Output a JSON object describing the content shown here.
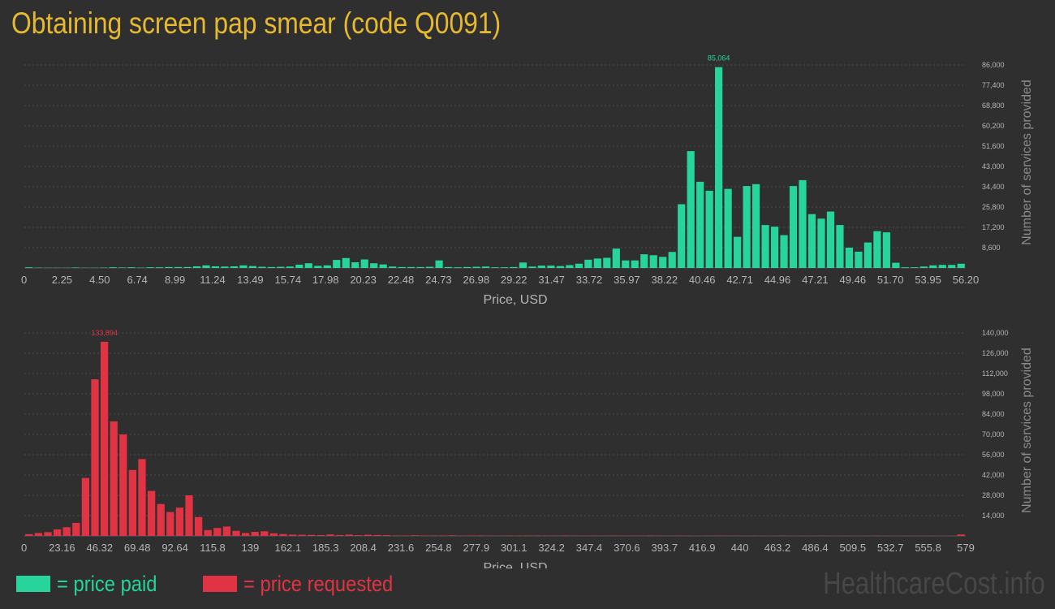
{
  "title": "Obtaining screen pap smear (code Q0091)",
  "legend": {
    "paid": {
      "label": "= price paid",
      "color": "#27d49c"
    },
    "requested": {
      "label": "= price requested",
      "color": "#e03445"
    }
  },
  "watermark": "HealthcareCost.info",
  "chart_data": [
    {
      "type": "bar",
      "xlabel": "Price, USD",
      "ylabel": "Number of services provided",
      "color": "#27d49c",
      "xlim": [
        0,
        56.2
      ],
      "ylim": [
        0,
        86000
      ],
      "x_ticks": [
        "0",
        "2.25",
        "4.50",
        "6.74",
        "8.99",
        "11.24",
        "13.49",
        "15.74",
        "17.98",
        "20.23",
        "22.48",
        "24.73",
        "26.98",
        "29.22",
        "31.47",
        "33.72",
        "35.97",
        "38.22",
        "40.46",
        "42.71",
        "44.96",
        "47.21",
        "49.46",
        "51.70",
        "53.95",
        "56.20"
      ],
      "y_ticks": [
        "8,600",
        "17,200",
        "25,800",
        "34,400",
        "43,000",
        "51,600",
        "60,200",
        "68,800",
        "77,400",
        "86,000"
      ],
      "peak_label": "85,064",
      "values": [
        300,
        150,
        100,
        100,
        100,
        200,
        100,
        100,
        150,
        300,
        200,
        300,
        150,
        300,
        300,
        400,
        400,
        400,
        700,
        1100,
        700,
        600,
        700,
        1100,
        800,
        500,
        400,
        500,
        600,
        1400,
        2000,
        900,
        1100,
        3400,
        4200,
        2400,
        3600,
        2000,
        1500,
        600,
        400,
        400,
        400,
        500,
        3200,
        400,
        300,
        400,
        500,
        600,
        300,
        300,
        400,
        2300,
        600,
        1000,
        1000,
        800,
        1200,
        1800,
        3500,
        4000,
        4300,
        8200,
        3200,
        3200,
        5800,
        5400,
        4700,
        6800,
        27000,
        49500,
        36500,
        32700,
        85064,
        33500,
        13200,
        34700,
        35500,
        18200,
        17500,
        13900,
        34700,
        37200,
        22800,
        20900,
        23900,
        18200,
        8600,
        6900,
        10800,
        15600,
        15100,
        2200,
        300,
        300,
        600,
        1100,
        1300,
        1300,
        1800
      ]
    },
    {
      "type": "bar",
      "xlabel": "Price, USD",
      "ylabel": "Number of services provided",
      "color": "#e03445",
      "xlim": [
        0,
        579
      ],
      "ylim": [
        0,
        140000
      ],
      "x_ticks": [
        "0",
        "23.16",
        "46.32",
        "69.48",
        "92.64",
        "115.8",
        "139",
        "162.1",
        "185.3",
        "208.4",
        "231.6",
        "254.8",
        "277.9",
        "301.1",
        "324.2",
        "347.4",
        "370.6",
        "393.7",
        "416.9",
        "440",
        "463.2",
        "486.4",
        "509.5",
        "532.7",
        "555.8",
        "579"
      ],
      "y_ticks": [
        "14,000",
        "28,000",
        "42,000",
        "56,000",
        "70,000",
        "84,000",
        "98,000",
        "112,000",
        "126,000",
        "140,000"
      ],
      "peak_label": "133,894",
      "values": [
        1200,
        2000,
        2600,
        4500,
        6000,
        9000,
        40000,
        108000,
        133894,
        79000,
        70000,
        45500,
        53000,
        31000,
        22000,
        16500,
        19500,
        28000,
        13000,
        4000,
        5500,
        6500,
        3500,
        2000,
        2800,
        3200,
        1800,
        1300,
        900,
        800,
        700,
        600,
        1000,
        600,
        900,
        500,
        800,
        600,
        500,
        300,
        300,
        400,
        300,
        300,
        300,
        400,
        200,
        300,
        300,
        200,
        200,
        300,
        200,
        300,
        300,
        200,
        200,
        300,
        200,
        200,
        200,
        200,
        300,
        200,
        200,
        200,
        300,
        200,
        200,
        200,
        200,
        100,
        200,
        200,
        200,
        200,
        100,
        200,
        100,
        100,
        200,
        100,
        100,
        100,
        200,
        100,
        100,
        100,
        100,
        100,
        200,
        100,
        100,
        100,
        100,
        100,
        100,
        100,
        100,
        1000
      ]
    }
  ]
}
